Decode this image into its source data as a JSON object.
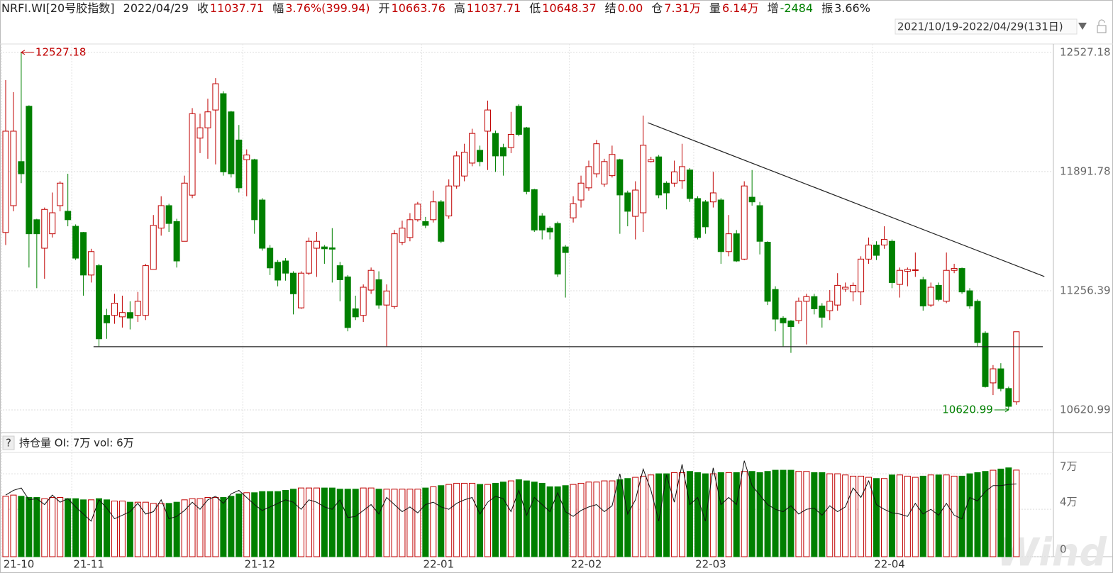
{
  "header": {
    "symbol": "NRFI.WI[20号胶指数]",
    "date": "2022/04/29",
    "fields": [
      {
        "label": "收",
        "value": "11037.71",
        "color": "#c00000"
      },
      {
        "label": "幅",
        "value": "3.76%(399.94)",
        "color": "#c00000"
      },
      {
        "label": "开",
        "value": "10663.76",
        "color": "#c00000"
      },
      {
        "label": "高",
        "value": "11037.71",
        "color": "#c00000"
      },
      {
        "label": "低",
        "value": "10648.37",
        "color": "#c00000"
      },
      {
        "label": "结",
        "value": "0.00",
        "color": "#c00000"
      },
      {
        "label": "仓",
        "value": "7.31万",
        "color": "#c00000"
      },
      {
        "label": "量",
        "value": "6.14万",
        "color": "#c00000"
      },
      {
        "label": "增",
        "value": "-2484",
        "color": "#008000"
      },
      {
        "label": "振",
        "value": "3.66%",
        "color": "#222222"
      }
    ],
    "range": "2021/10/19-2022/04/29(131日)",
    "watermark": "Wind"
  },
  "chart_data": [
    {
      "type": "candlestick",
      "ylim": [
        10500,
        12572
      ],
      "yticks": [
        12527.18,
        11891.78,
        11256.39,
        10620.99
      ],
      "grid": true,
      "up_color": "#c00000",
      "down_color": "#008000",
      "max_label": "12527.18",
      "min_label": "10620.99",
      "lines": [
        {
          "from": [
            82.6,
            12152
          ],
          "to": [
            133.6,
            11332
          ]
        },
        {
          "from": [
            11.3,
            10958
          ],
          "to": [
            133.4,
            10958
          ]
        }
      ],
      "open": [
        11567,
        11710,
        11945,
        12240,
        11635,
        11483,
        11560,
        11710,
        11680,
        11600,
        11567,
        11340,
        11390,
        11125,
        11125,
        11117,
        11140,
        11125,
        11125,
        11370,
        11590,
        11710,
        11625,
        11520,
        11766,
        12070,
        12125,
        12220,
        12307,
        12210,
        12060,
        11955,
        11955,
        11740,
        11483,
        11408,
        11415,
        11350,
        11165,
        11350,
        11483,
        11490,
        11485,
        11390,
        11330,
        11160,
        11125,
        11260,
        11315,
        11180,
        11172,
        11515,
        11540,
        11635,
        11625,
        11635,
        11730,
        11655,
        11815,
        11868,
        11937,
        12005,
        12107,
        12095,
        12020,
        12020,
        12240,
        12125,
        11795,
        11655,
        11590,
        11615,
        11490,
        11645,
        11740,
        11805,
        11880,
        11825,
        11870,
        11955,
        11778,
        11653,
        11672,
        11945,
        11970,
        11830,
        11830,
        11843,
        11900,
        11748,
        11730,
        11730,
        11740,
        11465,
        11560,
        11425,
        11755,
        11710,
        11515,
        11263,
        11110,
        11095,
        11097,
        11200,
        11225,
        11175,
        11150,
        11180,
        11265,
        11250,
        11250,
        11425,
        11500,
        11500,
        11520,
        11290,
        11360,
        11365,
        11315,
        11180,
        11285,
        11200,
        11365,
        11375,
        11256,
        11200,
        11030,
        10765,
        10840,
        10735,
        10663.76
      ],
      "high": [
        12379,
        12315,
        12527.18,
        12245,
        11640,
        11700,
        11780,
        11840,
        11880,
        11610,
        11570,
        11480,
        11400,
        11160,
        11240,
        11230,
        11200,
        11250,
        11400,
        11660,
        11760,
        11720,
        11640,
        11870,
        12230,
        12200,
        12280,
        12390,
        12320,
        12215,
        12140,
        12010,
        11960,
        11750,
        11500,
        11420,
        11430,
        11360,
        11360,
        11540,
        11570,
        11500,
        11590,
        11410,
        11340,
        11230,
        11290,
        11380,
        11360,
        11290,
        11580,
        11630,
        11670,
        11730,
        11650,
        11790,
        11740,
        11850,
        12000,
        12040,
        12120,
        12030,
        12270,
        12110,
        12040,
        12210,
        12250,
        12130,
        11800,
        11670,
        11600,
        11625,
        11500,
        11760,
        11870,
        11950,
        12060,
        11960,
        12030,
        11960,
        11790,
        11840,
        12190,
        11970,
        11980,
        11840,
        11950,
        12040,
        11910,
        11760,
        11740,
        11890,
        11750,
        11660,
        11580,
        11840,
        11900,
        11730,
        11520,
        11280,
        11120,
        11100,
        11220,
        11240,
        11240,
        11190,
        11260,
        11350,
        11300,
        11300,
        11440,
        11540,
        11520,
        11600,
        11530,
        11380,
        11380,
        11460,
        11330,
        11300,
        11300,
        11460,
        11400,
        11380,
        11270,
        11210,
        11040,
        10860,
        10870,
        10745,
        11037.71
      ],
      "low": [
        11500,
        11680,
        11830,
        11380,
        11270,
        11320,
        11540,
        11680,
        11600,
        11420,
        11230,
        11300,
        10960,
        11000,
        11080,
        11060,
        11050,
        11090,
        11100,
        11370,
        11550,
        11570,
        11380,
        11520,
        11750,
        11990,
        11960,
        11930,
        11870,
        11860,
        11780,
        11760,
        11560,
        11470,
        11340,
        11280,
        11310,
        11130,
        11160,
        11340,
        11330,
        11400,
        11300,
        11200,
        11040,
        11100,
        11090,
        11240,
        11160,
        10960,
        11160,
        11500,
        11520,
        11625,
        11590,
        11620,
        11510,
        11640,
        11800,
        11840,
        11920,
        11920,
        11900,
        11890,
        11870,
        11990,
        12080,
        11770,
        11570,
        11530,
        11530,
        11330,
        11220,
        11620,
        11700,
        11790,
        11860,
        11810,
        11860,
        11560,
        11600,
        11530,
        11570,
        11940,
        11750,
        11690,
        11810,
        11800,
        11730,
        11530,
        11560,
        11700,
        11400,
        11440,
        11410,
        11420,
        11710,
        11450,
        11180,
        11040,
        10960,
        10925,
        11080,
        10970,
        11130,
        11060,
        11100,
        11150,
        11250,
        11200,
        11180,
        11400,
        11420,
        11480,
        11270,
        11220,
        11280,
        11330,
        11150,
        11170,
        11200,
        11190,
        11350,
        11240,
        11160,
        10960,
        10740,
        10700,
        10720,
        10620.99,
        10648.37
      ],
      "close": [
        12107,
        12107,
        11880,
        11560,
        11560,
        11690,
        11672,
        11830,
        11635,
        11430,
        11340,
        11465,
        11000,
        11085,
        11190,
        11140,
        11110,
        11200,
        11390,
        11605,
        11710,
        11615,
        11415,
        11830,
        12200,
        12125,
        12210,
        12360,
        11890,
        11880,
        11805,
        11980,
        11635,
        11483,
        11378,
        11313,
        11350,
        11240,
        11350,
        11520,
        11520,
        11480,
        11478,
        11315,
        11060,
        11117,
        11275,
        11365,
        11180,
        11255,
        11560,
        11590,
        11635,
        11718,
        11605,
        11730,
        11520,
        11815,
        11975,
        11995,
        12095,
        11945,
        12220,
        11975,
        11975,
        12090,
        12090,
        11785,
        11580,
        11580,
        11570,
        11345,
        11460,
        11720,
        11830,
        11918,
        12040,
        11945,
        11983,
        11767,
        11680,
        11793,
        12032,
        11955,
        11767,
        11778,
        11890,
        11918,
        11748,
        11540,
        11597,
        11778,
        11465,
        11560,
        11415,
        11815,
        11730,
        11520,
        11200,
        11105,
        11085,
        11065,
        11200,
        11225,
        11160,
        11115,
        11200,
        11285,
        11275,
        11285,
        11425,
        11500,
        11445,
        11530,
        11300,
        11365,
        11370,
        11368,
        11175,
        11275,
        11210,
        11365,
        11375,
        11250,
        11175,
        10980,
        10745,
        10840,
        10735,
        10640,
        11037.71
      ]
    },
    {
      "type": "bar",
      "help": "?",
      "title": "持仓量 OI: 7万 vol: 6万",
      "ylim": [
        0,
        8.8
      ],
      "yticks": [
        0,
        {
          "value": 4,
          "label": "4万"
        },
        {
          "value": 7,
          "label": "7万"
        }
      ],
      "grid": true,
      "categories": [
        "21-10",
        null,
        null,
        null,
        null,
        null,
        null,
        null,
        null,
        "21-11",
        null,
        null,
        null,
        null,
        null,
        null,
        null,
        null,
        null,
        null,
        null,
        null,
        null,
        null,
        null,
        null,
        null,
        null,
        null,
        null,
        null,
        "21-12",
        null,
        null,
        null,
        null,
        null,
        null,
        null,
        null,
        null,
        null,
        null,
        null,
        null,
        null,
        null,
        null,
        null,
        null,
        null,
        null,
        null,
        null,
        "22-01",
        null,
        null,
        null,
        null,
        null,
        null,
        null,
        null,
        null,
        null,
        null,
        null,
        null,
        null,
        null,
        null,
        null,
        null,
        "22-02",
        null,
        null,
        null,
        null,
        null,
        null,
        null,
        null,
        null,
        null,
        null,
        null,
        null,
        null,
        null,
        "22-03",
        null,
        null,
        null,
        null,
        null,
        null,
        null,
        null,
        null,
        null,
        null,
        null,
        null,
        null,
        null,
        null,
        null,
        null,
        null,
        null,
        null,
        null,
        "22-04",
        null,
        null,
        null,
        null,
        null,
        null,
        null,
        null,
        null,
        null,
        null,
        null,
        null,
        null,
        null,
        null,
        null,
        null
      ],
      "series": [
        {
          "type": "bar",
          "values": [
            5.1,
            5.2,
            5.1,
            5.0,
            5.0,
            4.9,
            5.0,
            5.0,
            4.9,
            4.9,
            4.8,
            4.8,
            4.9,
            4.8,
            4.7,
            4.7,
            4.6,
            4.6,
            4.6,
            4.5,
            4.5,
            4.5,
            4.6,
            4.8,
            4.9,
            4.9,
            5.0,
            5.0,
            5.0,
            5.1,
            5.3,
            5.4,
            5.4,
            5.5,
            5.5,
            5.5,
            5.6,
            5.7,
            5.8,
            5.8,
            5.8,
            5.8,
            5.8,
            5.7,
            5.7,
            5.7,
            5.8,
            5.8,
            5.7,
            5.7,
            5.7,
            5.7,
            5.7,
            5.7,
            5.8,
            5.9,
            6.0,
            6.1,
            6.2,
            6.2,
            6.2,
            6.1,
            6.1,
            6.2,
            6.3,
            6.4,
            6.5,
            6.4,
            6.3,
            6.2,
            5.9,
            5.9,
            6.0,
            6.1,
            6.2,
            6.3,
            6.3,
            6.4,
            6.4,
            6.5,
            6.6,
            6.7,
            6.8,
            6.9,
            7.0,
            7.0,
            7.1,
            7.1,
            7.2,
            7.1,
            7.0,
            7.0,
            7.1,
            7.1,
            7.1,
            7.2,
            7.2,
            7.1,
            7.2,
            7.3,
            7.3,
            7.3,
            7.2,
            7.2,
            7.1,
            7.1,
            7.0,
            7.0,
            6.9,
            6.8,
            6.8,
            6.7,
            6.6,
            6.6,
            6.9,
            6.9,
            6.8,
            6.7,
            6.8,
            6.9,
            6.9,
            6.9,
            6.8,
            6.8,
            7.0,
            7.1,
            7.2,
            7.3,
            7.4,
            7.5,
            7.31
          ]
        },
        {
          "type": "line",
          "color": "#111111",
          "values": [
            5.2,
            5.6,
            5.8,
            4.8,
            4.9,
            4.4,
            5.2,
            4.6,
            4.9,
            4.2,
            3.6,
            3.0,
            4.8,
            4.1,
            3.2,
            3.5,
            3.8,
            4.5,
            3.6,
            3.8,
            4.8,
            3.2,
            3.4,
            3.9,
            4.6,
            4.0,
            4.8,
            5.1,
            4.5,
            5.3,
            5.6,
            5.0,
            4.4,
            3.9,
            4.2,
            4.5,
            4.8,
            4.6,
            4.0,
            4.8,
            4.6,
            4.2,
            4.0,
            4.8,
            3.3,
            3.4,
            3.9,
            4.4,
            3.6,
            5.0,
            4.4,
            3.8,
            4.2,
            3.7,
            4.4,
            4.6,
            4.2,
            4.0,
            4.5,
            4.8,
            5.0,
            3.6,
            4.6,
            5.1,
            4.9,
            3.8,
            5.6,
            3.5,
            5.0,
            4.4,
            3.8,
            5.4,
            3.8,
            3.4,
            3.9,
            4.2,
            4.4,
            3.8,
            4.3,
            7.0,
            3.6,
            4.8,
            7.4,
            5.6,
            3.0,
            6.9,
            4.6,
            7.8,
            4.4,
            5.0,
            3.0,
            7.5,
            4.4,
            5.0,
            4.4,
            8.1,
            6.0,
            5.2,
            4.4,
            4.0,
            3.8,
            4.3,
            3.6,
            4.0,
            4.1,
            3.5,
            4.3,
            3.8,
            4.2,
            5.8,
            5.0,
            6.4,
            4.4,
            4.0,
            3.7,
            3.6,
            3.4,
            4.5,
            3.6,
            4.0,
            3.5,
            4.5,
            3.5,
            3.2,
            5.0,
            4.7,
            5.5,
            6.0,
            6.0,
            6.1,
            6.14
          ]
        }
      ]
    }
  ]
}
